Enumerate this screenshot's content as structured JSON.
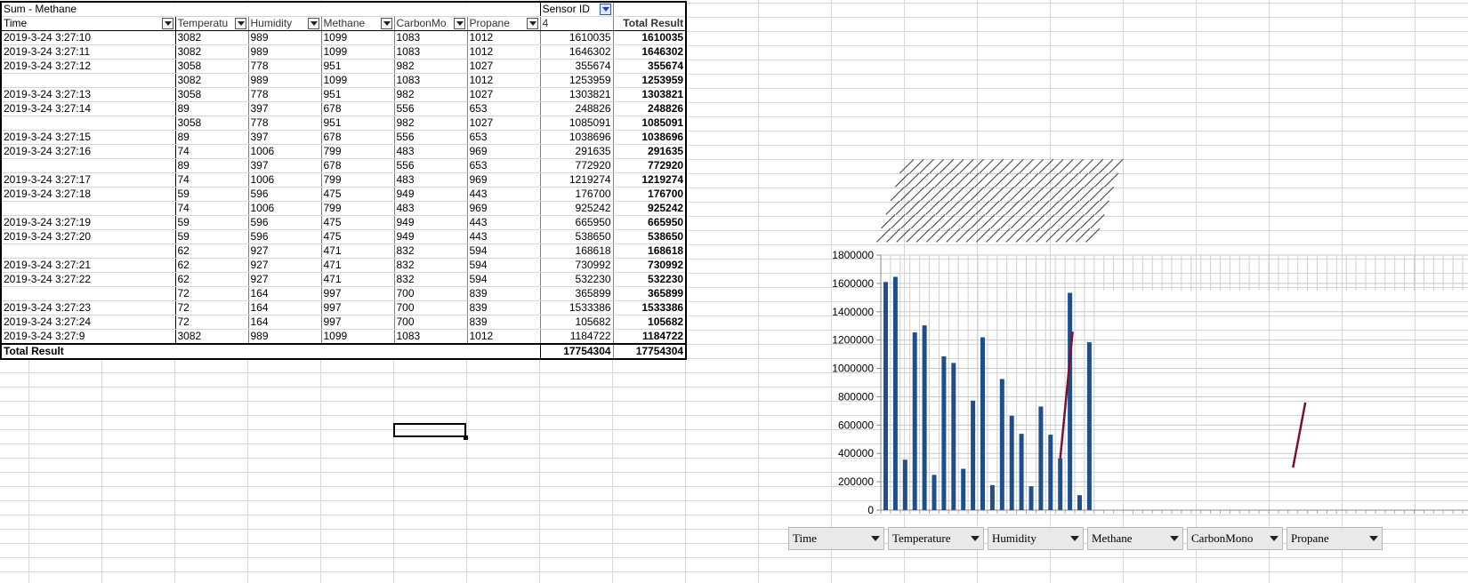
{
  "pivot": {
    "title": "Sum - Methane",
    "column_field": "Sensor ID",
    "headers": [
      "Time",
      "Temperatu",
      "Humidity",
      "Methane",
      "CarbonMo",
      "Propane",
      "4",
      "Total Result"
    ],
    "rows": [
      {
        "time": "2019-3-24 3:27:10",
        "temperature": "3082",
        "humidity": "989",
        "methane": "1099",
        "carbonmono": "1083",
        "propane": "1012",
        "value": "1610035",
        "total": "1610035",
        "group_start": true
      },
      {
        "time": "2019-3-24 3:27:11",
        "temperature": "3082",
        "humidity": "989",
        "methane": "1099",
        "carbonmono": "1083",
        "propane": "1012",
        "value": "1646302",
        "total": "1646302",
        "group_start": true
      },
      {
        "time": "2019-3-24 3:27:12",
        "temperature": "3058",
        "humidity": "778",
        "methane": "951",
        "carbonmono": "982",
        "propane": "1027",
        "value": "355674",
        "total": "355674",
        "group_start": true
      },
      {
        "time": "",
        "temperature": "3082",
        "humidity": "989",
        "methane": "1099",
        "carbonmono": "1083",
        "propane": "1012",
        "value": "1253959",
        "total": "1253959",
        "group_start": false
      },
      {
        "time": "2019-3-24 3:27:13",
        "temperature": "3058",
        "humidity": "778",
        "methane": "951",
        "carbonmono": "982",
        "propane": "1027",
        "value": "1303821",
        "total": "1303821",
        "group_start": true
      },
      {
        "time": "2019-3-24 3:27:14",
        "temperature": "89",
        "humidity": "397",
        "methane": "678",
        "carbonmono": "556",
        "propane": "653",
        "value": "248826",
        "total": "248826",
        "group_start": true
      },
      {
        "time": "",
        "temperature": "3058",
        "humidity": "778",
        "methane": "951",
        "carbonmono": "982",
        "propane": "1027",
        "value": "1085091",
        "total": "1085091",
        "group_start": false
      },
      {
        "time": "2019-3-24 3:27:15",
        "temperature": "89",
        "humidity": "397",
        "methane": "678",
        "carbonmono": "556",
        "propane": "653",
        "value": "1038696",
        "total": "1038696",
        "group_start": true
      },
      {
        "time": "2019-3-24 3:27:16",
        "temperature": "74",
        "humidity": "1006",
        "methane": "799",
        "carbonmono": "483",
        "propane": "969",
        "value": "291635",
        "total": "291635",
        "group_start": true
      },
      {
        "time": "",
        "temperature": "89",
        "humidity": "397",
        "methane": "678",
        "carbonmono": "556",
        "propane": "653",
        "value": "772920",
        "total": "772920",
        "group_start": false
      },
      {
        "time": "2019-3-24 3:27:17",
        "temperature": "74",
        "humidity": "1006",
        "methane": "799",
        "carbonmono": "483",
        "propane": "969",
        "value": "1219274",
        "total": "1219274",
        "group_start": true
      },
      {
        "time": "2019-3-24 3:27:18",
        "temperature": "59",
        "humidity": "596",
        "methane": "475",
        "carbonmono": "949",
        "propane": "443",
        "value": "176700",
        "total": "176700",
        "group_start": true
      },
      {
        "time": "",
        "temperature": "74",
        "humidity": "1006",
        "methane": "799",
        "carbonmono": "483",
        "propane": "969",
        "value": "925242",
        "total": "925242",
        "group_start": false
      },
      {
        "time": "2019-3-24 3:27:19",
        "temperature": "59",
        "humidity": "596",
        "methane": "475",
        "carbonmono": "949",
        "propane": "443",
        "value": "665950",
        "total": "665950",
        "group_start": true
      },
      {
        "time": "2019-3-24 3:27:20",
        "temperature": "59",
        "humidity": "596",
        "methane": "475",
        "carbonmono": "949",
        "propane": "443",
        "value": "538650",
        "total": "538650",
        "group_start": true
      },
      {
        "time": "",
        "temperature": "62",
        "humidity": "927",
        "methane": "471",
        "carbonmono": "832",
        "propane": "594",
        "value": "168618",
        "total": "168618",
        "group_start": false
      },
      {
        "time": "2019-3-24 3:27:21",
        "temperature": "62",
        "humidity": "927",
        "methane": "471",
        "carbonmono": "832",
        "propane": "594",
        "value": "730992",
        "total": "730992",
        "group_start": true
      },
      {
        "time": "2019-3-24 3:27:22",
        "temperature": "62",
        "humidity": "927",
        "methane": "471",
        "carbonmono": "832",
        "propane": "594",
        "value": "532230",
        "total": "532230",
        "group_start": true
      },
      {
        "time": "",
        "temperature": "72",
        "humidity": "164",
        "methane": "997",
        "carbonmono": "700",
        "propane": "839",
        "value": "365899",
        "total": "365899",
        "group_start": false
      },
      {
        "time": "2019-3-24 3:27:23",
        "temperature": "72",
        "humidity": "164",
        "methane": "997",
        "carbonmono": "700",
        "propane": "839",
        "value": "1533386",
        "total": "1533386",
        "group_start": true
      },
      {
        "time": "2019-3-24 3:27:24",
        "temperature": "72",
        "humidity": "164",
        "methane": "997",
        "carbonmono": "700",
        "propane": "839",
        "value": "105682",
        "total": "105682",
        "group_start": true
      },
      {
        "time": "2019-3-24 3:27:9",
        "temperature": "3082",
        "humidity": "989",
        "methane": "1099",
        "carbonmono": "1083",
        "propane": "1012",
        "value": "1184722",
        "total": "1184722",
        "group_start": true
      }
    ],
    "total_label": "Total Result",
    "total_value": "17754304",
    "total_result": "17754304"
  },
  "chart_data": {
    "type": "bar",
    "title": "",
    "xlabel": "",
    "ylabel": "",
    "ylim": [
      0,
      1800000
    ],
    "y_ticks": [
      "1800000",
      "1600000",
      "1400000",
      "1200000",
      "1000000",
      "800000",
      "600000",
      "400000",
      "200000",
      "0"
    ],
    "values": [
      1610035,
      1646302,
      355674,
      1253959,
      1303821,
      248826,
      1085091,
      1038696,
      291635,
      772920,
      1219274,
      176700,
      925242,
      665950,
      538650,
      168618,
      730992,
      532230,
      365899,
      1533386,
      105682,
      1184722
    ],
    "grid": true,
    "bar_color": "#1f4e8c",
    "line_color": "#7b1030",
    "overlay_lines": [
      {
        "from_index": 18,
        "from_value": 365899,
        "to_index": 19,
        "to_value": 1260000
      },
      {
        "from_index": 42,
        "from_value": 300000,
        "to_index": 43,
        "to_value": 760000
      }
    ],
    "category_labels_note": "rotated, overlapping category labels"
  },
  "field_buttons": [
    "Time",
    "Temperature",
    "Humidity",
    "Methane",
    "CarbonMono",
    "Propane"
  ]
}
